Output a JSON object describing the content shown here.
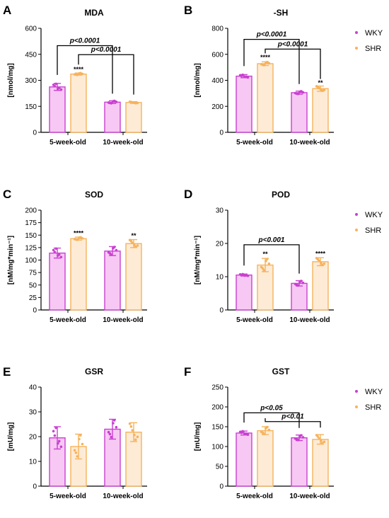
{
  "colors": {
    "wky_fill": "#f7c8f3",
    "wky_stroke": "#c940d1",
    "shr_fill": "#fdebd6",
    "shr_stroke": "#f6b35c",
    "wky_point": "#c940d1",
    "shr_point": "#f6b35c"
  },
  "legend": [
    {
      "label": "WKY"
    },
    {
      "label": "SHR"
    }
  ],
  "chart_data": [
    {
      "type": "bar",
      "letter": "A",
      "title": "MDA",
      "ylabel": "[nmol/mg]",
      "ylim": [
        0,
        600
      ],
      "yticks": [
        0,
        150,
        300,
        450,
        600
      ],
      "categories": [
        "5-week-old",
        "10-week-old"
      ],
      "series": [
        {
          "name": "WKY",
          "values": [
            262,
            174
          ],
          "errors": [
            20,
            8
          ]
        },
        {
          "name": "SHR",
          "values": [
            336,
            172
          ],
          "errors": [
            6,
            5
          ]
        }
      ],
      "annotations": [
        {
          "text": "****",
          "category": 0,
          "series": 1,
          "y": 352
        }
      ],
      "brackets": [
        {
          "text": "p<0.0001",
          "from": [
            0,
            0
          ],
          "to": [
            1,
            0
          ],
          "y": 500
        },
        {
          "text": "p<0.0001",
          "from": [
            0,
            1
          ],
          "to": [
            1,
            1
          ],
          "y": 448
        }
      ],
      "legend": false
    },
    {
      "type": "bar",
      "letter": "B",
      "title": "-SH",
      "ylabel": "[nmol/mg]",
      "ylim": [
        0,
        800
      ],
      "yticks": [
        0,
        200,
        400,
        600,
        800
      ],
      "categories": [
        "5-week-old",
        "10-week-old"
      ],
      "series": [
        {
          "name": "WKY",
          "values": [
            432,
            305
          ],
          "errors": [
            12,
            12
          ]
        },
        {
          "name": "SHR",
          "values": [
            528,
            336
          ],
          "errors": [
            14,
            20
          ]
        }
      ],
      "annotations": [
        {
          "text": "****",
          "category": 0,
          "series": 1,
          "y": 560
        },
        {
          "text": "**",
          "category": 1,
          "series": 1,
          "y": 365
        }
      ],
      "brackets": [
        {
          "text": "p<0.0001",
          "from": [
            0,
            0
          ],
          "to": [
            1,
            0
          ],
          "y": 715
        },
        {
          "text": "p<0.0001",
          "from": [
            0,
            1
          ],
          "to": [
            1,
            1
          ],
          "y": 640
        }
      ],
      "legend": true
    },
    {
      "type": "bar",
      "letter": "C",
      "title": "SOD",
      "ylabel": "[nM/mg*min⁻¹]",
      "ylim": [
        0,
        200
      ],
      "yticks": [
        0,
        25,
        50,
        75,
        100,
        125,
        150,
        175,
        200
      ],
      "categories": [
        "5-week-old",
        "10-week-old"
      ],
      "series": [
        {
          "name": "WKY",
          "values": [
            114,
            118
          ],
          "errors": [
            10,
            9
          ]
        },
        {
          "name": "SHR",
          "values": [
            143,
            133
          ],
          "errors": [
            3,
            8
          ]
        }
      ],
      "annotations": [
        {
          "text": "****",
          "category": 0,
          "series": 1,
          "y": 150
        },
        {
          "text": "**",
          "category": 1,
          "series": 1,
          "y": 145
        }
      ],
      "brackets": [],
      "legend": false
    },
    {
      "type": "bar",
      "letter": "D",
      "title": "POD",
      "ylabel": "[nM/mg*min⁻¹]",
      "ylim": [
        0,
        30
      ],
      "yticks": [
        0,
        10,
        20,
        30
      ],
      "categories": [
        "5-week-old",
        "10-week-old"
      ],
      "series": [
        {
          "name": "WKY",
          "values": [
            10.5,
            8.0
          ],
          "errors": [
            0.3,
            0.8
          ]
        },
        {
          "name": "SHR",
          "values": [
            13.5,
            14.5
          ],
          "errors": [
            2.0,
            1.2
          ]
        }
      ],
      "annotations": [
        {
          "text": "**",
          "category": 0,
          "series": 1,
          "y": 16.2
        },
        {
          "text": "****",
          "category": 1,
          "series": 1,
          "y": 16.3
        }
      ],
      "brackets": [
        {
          "text": "p<0.001",
          "from": [
            0,
            0
          ],
          "to": [
            1,
            0
          ],
          "y": 19.6
        }
      ],
      "legend": true
    },
    {
      "type": "bar",
      "letter": "E",
      "title": "GSR",
      "ylabel": "[mU/mg]",
      "ylim": [
        0,
        40
      ],
      "yticks": [
        0,
        10,
        20,
        30,
        40
      ],
      "categories": [
        "5-week-old",
        "10-week-old"
      ],
      "series": [
        {
          "name": "WKY",
          "values": [
            19.5,
            23.0
          ],
          "errors": [
            4.5,
            4.0
          ]
        },
        {
          "name": "SHR",
          "values": [
            16.0,
            21.8
          ],
          "errors": [
            5.0,
            3.8
          ]
        }
      ],
      "annotations": [],
      "brackets": [],
      "legend": false
    },
    {
      "type": "bar",
      "letter": "F",
      "title": "GST",
      "ylabel": "[mU/mg]",
      "ylim": [
        0,
        250
      ],
      "yticks": [
        0,
        50,
        100,
        150,
        200,
        250
      ],
      "categories": [
        "5-week-old",
        "10-week-old"
      ],
      "series": [
        {
          "name": "WKY",
          "values": [
            134,
            122
          ],
          "errors": [
            5,
            7
          ]
        },
        {
          "name": "SHR",
          "values": [
            140,
            118
          ],
          "errors": [
            10,
            12
          ]
        }
      ],
      "annotations": [],
      "brackets": [
        {
          "text": "p<0.05",
          "from": [
            0,
            0
          ],
          "to": [
            1,
            0
          ],
          "y": 185
        },
        {
          "text": "p<0.01",
          "from": [
            0,
            1
          ],
          "to": [
            1,
            1
          ],
          "y": 163
        }
      ],
      "legend": true
    }
  ]
}
